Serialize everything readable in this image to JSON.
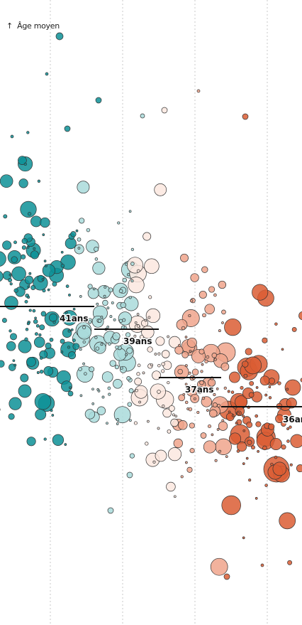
{
  "chart_data": {
    "type": "scatter",
    "ylabel": "Âge moyen",
    "ylabel_arrow": "↑",
    "colors": {
      "teal": "#0d9096",
      "light_teal": "#a9dadb",
      "pale": "#fbe7df",
      "salmon": "#f0a58c",
      "orange": "#db5d34",
      "mean_line": "#111111",
      "gridline": "#c8c8c8",
      "bubble_stroke": "#333333"
    },
    "groups": [
      {
        "mean_label": "41ans",
        "color": "teal"
      },
      {
        "mean_label": "39ans",
        "color": "light_teal"
      },
      {
        "mean_label": "37ans",
        "color": "pale"
      },
      {
        "mean_label": "36ans",
        "color": "orange"
      }
    ]
  }
}
